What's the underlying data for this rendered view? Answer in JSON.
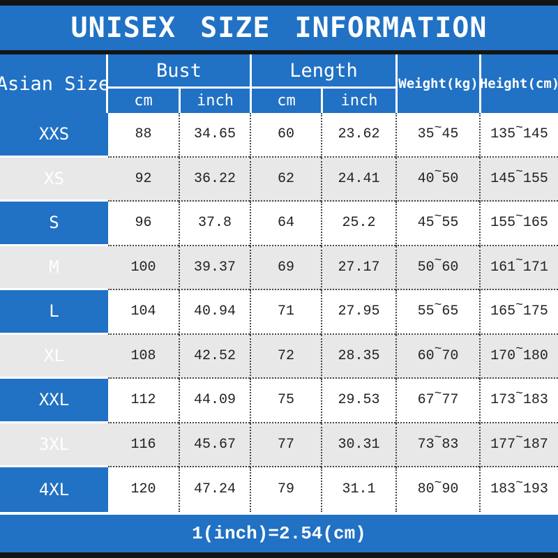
{
  "title": "UNISEX SIZE INFORMATION",
  "table": {
    "col1_header": "Asian Size",
    "bust_header": "Bust",
    "length_header": "Length",
    "sub_headers": {
      "bust_cm": "cm",
      "bust_inch": "inch",
      "length_cm": "cm",
      "length_inch": "inch"
    },
    "weight_header": "Weight(kg)",
    "height_header": "Height(cm)",
    "range_separator": "~",
    "rows": [
      {
        "size": "XXS",
        "bust_cm": "88",
        "bust_inch": "34.65",
        "length_cm": "60",
        "length_inch": "23.62",
        "weight_min": "35",
        "weight_max": "45",
        "height_min": "135",
        "height_max": "145"
      },
      {
        "size": "XS",
        "bust_cm": "92",
        "bust_inch": "36.22",
        "length_cm": "62",
        "length_inch": "24.41",
        "weight_min": "40",
        "weight_max": "50",
        "height_min": "145",
        "height_max": "155"
      },
      {
        "size": "S",
        "bust_cm": "96",
        "bust_inch": "37.8",
        "length_cm": "64",
        "length_inch": "25.2",
        "weight_min": "45",
        "weight_max": "55",
        "height_min": "155",
        "height_max": "165"
      },
      {
        "size": "M",
        "bust_cm": "100",
        "bust_inch": "39.37",
        "length_cm": "69",
        "length_inch": "27.17",
        "weight_min": "50",
        "weight_max": "60",
        "height_min": "161",
        "height_max": "171"
      },
      {
        "size": "L",
        "bust_cm": "104",
        "bust_inch": "40.94",
        "length_cm": "71",
        "length_inch": "27.95",
        "weight_min": "55",
        "weight_max": "65",
        "height_min": "165",
        "height_max": "175"
      },
      {
        "size": "XL",
        "bust_cm": "108",
        "bust_inch": "42.52",
        "length_cm": "72",
        "length_inch": "28.35",
        "weight_min": "60",
        "weight_max": "70",
        "height_min": "170",
        "height_max": "180"
      },
      {
        "size": "XXL",
        "bust_cm": "112",
        "bust_inch": "44.09",
        "length_cm": "75",
        "length_inch": "29.53",
        "weight_min": "67",
        "weight_max": "77",
        "height_min": "173",
        "height_max": "183"
      },
      {
        "size": "3XL",
        "bust_cm": "116",
        "bust_inch": "45.67",
        "length_cm": "77",
        "length_inch": "30.31",
        "weight_min": "73",
        "weight_max": "83",
        "height_min": "177",
        "height_max": "187"
      },
      {
        "size": "4XL",
        "bust_cm": "120",
        "bust_inch": "47.24",
        "length_cm": "79",
        "length_inch": "31.1",
        "weight_min": "80",
        "weight_max": "90",
        "height_min": "183",
        "height_max": "193"
      }
    ]
  },
  "footer": "1(inch)=2.54(cm)",
  "colors": {
    "accent_blue": "#2171c4",
    "alt_row_gray": "#e8e8e8",
    "frame_black": "#141414",
    "text_dark": "#222222"
  }
}
